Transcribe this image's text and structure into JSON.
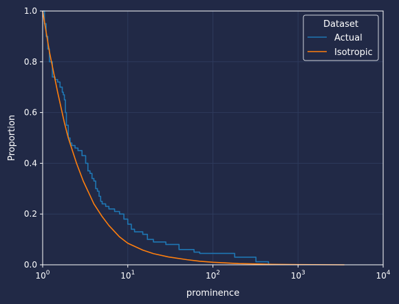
{
  "chart_data": {
    "type": "line",
    "title": "",
    "xlabel": "prominence",
    "ylabel": "Proportion",
    "xscale": "log",
    "xlim": [
      1,
      10000
    ],
    "ylim": [
      0,
      1
    ],
    "x_ticks": [
      {
        "value": 1,
        "base": "10",
        "exp": "0"
      },
      {
        "value": 10,
        "base": "10",
        "exp": "1"
      },
      {
        "value": 100,
        "base": "10",
        "exp": "2"
      },
      {
        "value": 1000,
        "base": "10",
        "exp": "3"
      },
      {
        "value": 10000,
        "base": "10",
        "exp": "4"
      }
    ],
    "y_ticks": [
      "0.0",
      "0.2",
      "0.4",
      "0.6",
      "0.8",
      "1.0"
    ],
    "grid": true,
    "legend": {
      "title": "Dataset",
      "placement": "top-right"
    },
    "series": [
      {
        "name": "Actual",
        "color": "#1f77b4",
        "step": true,
        "x": [
          1.0,
          1.05,
          1.1,
          1.15,
          1.2,
          1.3,
          1.4,
          1.5,
          1.6,
          1.7,
          1.75,
          1.8,
          1.85,
          1.9,
          2.0,
          2.1,
          2.2,
          2.4,
          2.6,
          2.9,
          3.2,
          3.4,
          3.6,
          3.8,
          4.0,
          4.2,
          4.4,
          4.6,
          4.8,
          5.0,
          5.5,
          6.0,
          7.0,
          8.0,
          9.0,
          10.0,
          11.0,
          12.0,
          15.0,
          17.0,
          20.0,
          28.0,
          40.0,
          60.0,
          70.0,
          180.0,
          320.0,
          450.0
        ],
        "y": [
          1.0,
          0.95,
          0.9,
          0.85,
          0.8,
          0.74,
          0.73,
          0.72,
          0.7,
          0.68,
          0.67,
          0.65,
          0.6,
          0.55,
          0.5,
          0.48,
          0.47,
          0.46,
          0.45,
          0.43,
          0.4,
          0.37,
          0.36,
          0.34,
          0.33,
          0.3,
          0.29,
          0.27,
          0.25,
          0.24,
          0.23,
          0.22,
          0.21,
          0.2,
          0.18,
          0.16,
          0.14,
          0.13,
          0.12,
          0.1,
          0.09,
          0.08,
          0.06,
          0.05,
          0.045,
          0.03,
          0.012,
          0.0
        ]
      },
      {
        "name": "Isotropic",
        "color": "#ff7f0e",
        "step": false,
        "x": [
          1.0,
          1.2,
          1.5,
          1.8,
          2.0,
          2.5,
          3.0,
          4.0,
          5.0,
          6.0,
          8.0,
          10.0,
          15.0,
          20.0,
          30.0,
          50.0,
          70.0,
          100.0,
          200.0,
          500.0,
          1000.0,
          3500.0
        ],
        "y": [
          1.0,
          0.84,
          0.68,
          0.56,
          0.5,
          0.4,
          0.33,
          0.24,
          0.19,
          0.155,
          0.11,
          0.085,
          0.058,
          0.044,
          0.031,
          0.02,
          0.014,
          0.01,
          0.005,
          0.002,
          0.001,
          0.0
        ]
      }
    ]
  }
}
